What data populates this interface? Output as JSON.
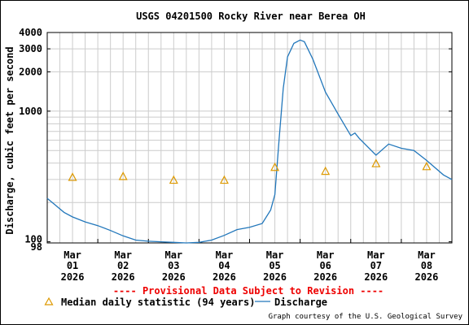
{
  "chart_data": {
    "type": "line",
    "title": "USGS 04201500 Rocky River near Berea OH",
    "ylabel": "Discharge, cubic feet per second",
    "yscale": "log",
    "ylim": [
      98,
      4000
    ],
    "ytick_labels": [
      "98",
      "100",
      "1000",
      "2000",
      "3000",
      "4000"
    ],
    "ytick_values": [
      98,
      100,
      1000,
      2000,
      3000,
      4000
    ],
    "xlim": [
      "2026-03-01T00:00",
      "2026-03-09T00:00"
    ],
    "x_tick_labels": [
      {
        "month": "Mar",
        "day": "01",
        "year": "2026"
      },
      {
        "month": "Mar",
        "day": "02",
        "year": "2026"
      },
      {
        "month": "Mar",
        "day": "03",
        "year": "2026"
      },
      {
        "month": "Mar",
        "day": "04",
        "year": "2026"
      },
      {
        "month": "Mar",
        "day": "05",
        "year": "2026"
      },
      {
        "month": "Mar",
        "day": "06",
        "year": "2026"
      },
      {
        "month": "Mar",
        "day": "07",
        "year": "2026"
      },
      {
        "month": "Mar",
        "day": "08",
        "year": "2026"
      }
    ],
    "grid": true,
    "series": [
      {
        "name": "Discharge",
        "color": "#2277bb",
        "points": [
          [
            "2026-03-01T00:00",
            215
          ],
          [
            "2026-03-01T04:00",
            190
          ],
          [
            "2026-03-01T08:00",
            168
          ],
          [
            "2026-03-01T12:00",
            155
          ],
          [
            "2026-03-01T18:00",
            142
          ],
          [
            "2026-03-02T00:00",
            133
          ],
          [
            "2026-03-02T06:00",
            122
          ],
          [
            "2026-03-02T12:00",
            111
          ],
          [
            "2026-03-02T18:00",
            103
          ],
          [
            "2026-03-03T00:00",
            101
          ],
          [
            "2026-03-03T06:00",
            100
          ],
          [
            "2026-03-03T12:00",
            99
          ],
          [
            "2026-03-03T18:00",
            98
          ],
          [
            "2026-03-04T00:00",
            99
          ],
          [
            "2026-03-04T06:00",
            103
          ],
          [
            "2026-03-04T12:00",
            112
          ],
          [
            "2026-03-04T18:00",
            124
          ],
          [
            "2026-03-05T00:00",
            129
          ],
          [
            "2026-03-05T06:00",
            138
          ],
          [
            "2026-03-05T10:00",
            175
          ],
          [
            "2026-03-05T12:00",
            230
          ],
          [
            "2026-03-05T14:00",
            600
          ],
          [
            "2026-03-05T16:00",
            1500
          ],
          [
            "2026-03-05T18:00",
            2600
          ],
          [
            "2026-03-05T21:00",
            3300
          ],
          [
            "2026-03-06T00:00",
            3500
          ],
          [
            "2026-03-06T02:00",
            3400
          ],
          [
            "2026-03-06T06:00",
            2500
          ],
          [
            "2026-03-06T12:00",
            1400
          ],
          [
            "2026-03-06T18:00",
            950
          ],
          [
            "2026-03-07T00:00",
            650
          ],
          [
            "2026-03-07T02:00",
            680
          ],
          [
            "2026-03-07T04:00",
            620
          ],
          [
            "2026-03-07T12:00",
            460
          ],
          [
            "2026-03-07T18:00",
            560
          ],
          [
            "2026-03-08T00:00",
            520
          ],
          [
            "2026-03-08T06:00",
            500
          ],
          [
            "2026-03-08T12:00",
            420
          ],
          [
            "2026-03-08T20:00",
            325
          ],
          [
            "2026-03-09T00:00",
            300
          ]
        ]
      },
      {
        "name": "Median daily statistic (94 years)",
        "marker": "triangle",
        "color": "#dd9900",
        "points": [
          [
            "2026-03-01T12:00",
            310
          ],
          [
            "2026-03-02T12:00",
            315
          ],
          [
            "2026-03-03T12:00",
            295
          ],
          [
            "2026-03-04T12:00",
            295
          ],
          [
            "2026-03-05T12:00",
            370
          ],
          [
            "2026-03-06T12:00",
            345
          ],
          [
            "2026-03-07T12:00",
            395
          ],
          [
            "2026-03-08T12:00",
            375
          ]
        ]
      }
    ]
  },
  "provisional_note": "---- Provisional Data Subject to Revision ----",
  "legend": {
    "median_label": "Median daily statistic (94 years)",
    "discharge_label": "Discharge"
  },
  "credit": "Graph courtesy of the U.S. Geological Survey",
  "colors": {
    "provisional": "#ee0000",
    "grid": "#cccccc",
    "axis": "#000000"
  }
}
